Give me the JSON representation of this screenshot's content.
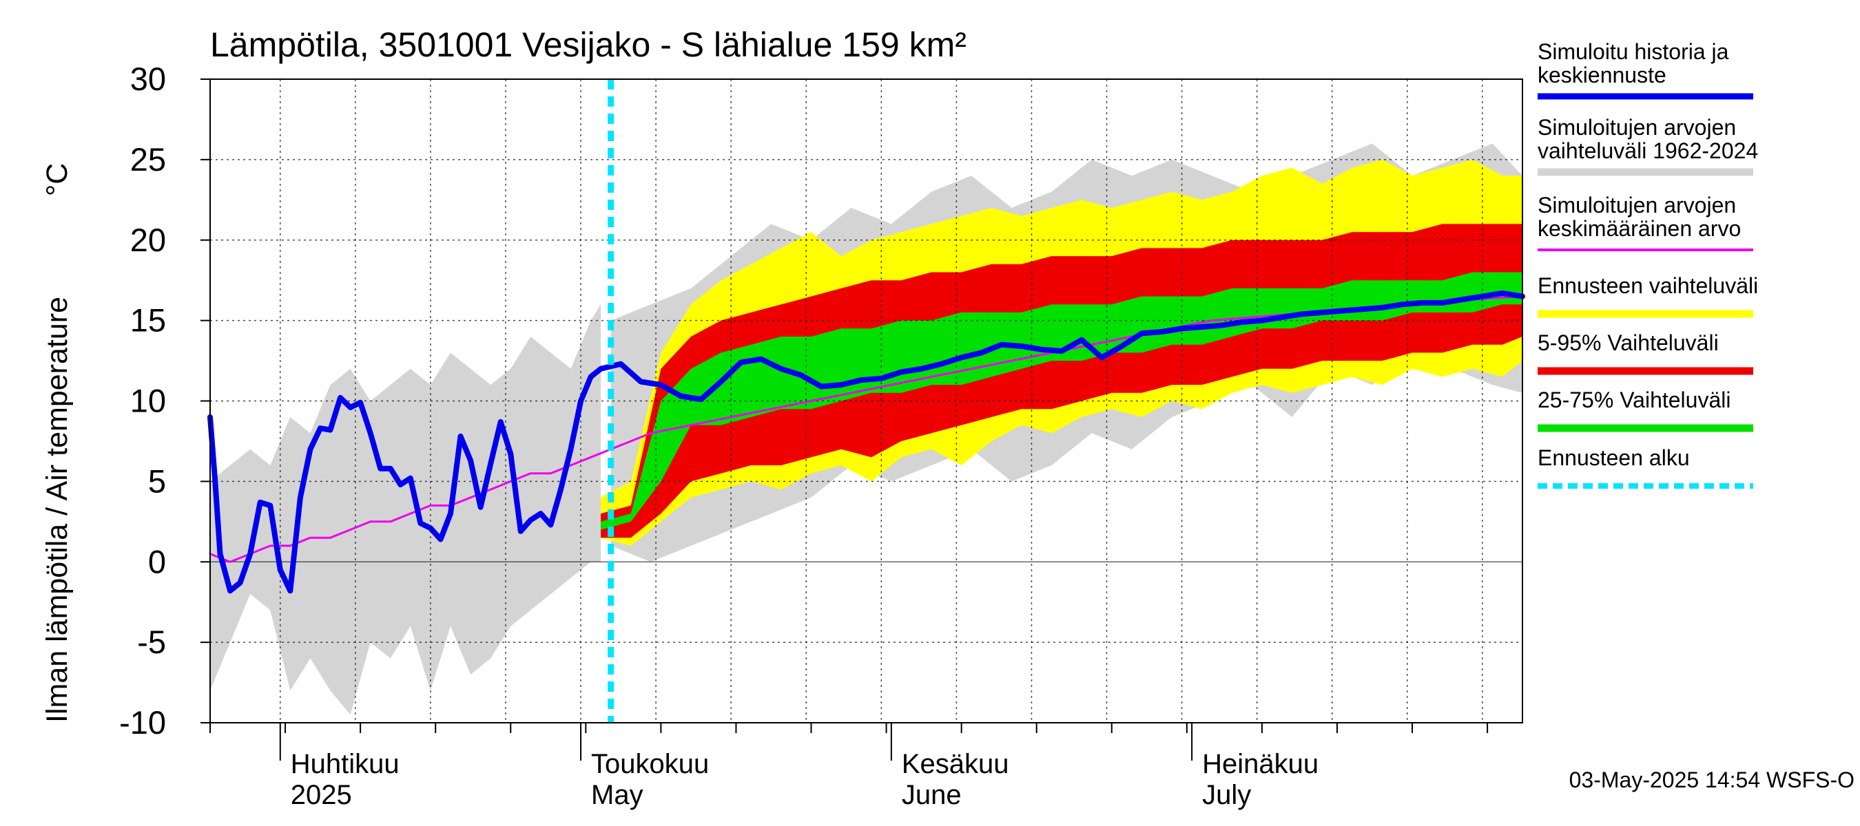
{
  "chart_data": {
    "type": "area",
    "title": "Lämpötila, 3501001 Vesijako - S lähialue 159 km²",
    "ylabel_fi": "Ilman lämpötila / Air temperature",
    "yunit": "°C",
    "ylim": [
      -10,
      30
    ],
    "yticks": [
      "30",
      "25",
      "20",
      "15",
      "10",
      "5",
      "0",
      "-5",
      "-10"
    ],
    "x_start": "2025-03-25",
    "x_end": "2025-08-03",
    "forecast_start": "2025-05-04",
    "month_labels": [
      {
        "fi": "Huhtikuu",
        "en": "2025",
        "date": "2025-04-01"
      },
      {
        "fi": "Toukokuu",
        "en": "May",
        "date": "2025-05-01"
      },
      {
        "fi": "Kesäkuu",
        "en": "June",
        "date": "2025-06-01"
      },
      {
        "fi": "Heinäkuu",
        "en": "July",
        "date": "2025-07-01"
      }
    ],
    "timestamp": "03-May-2025 14:54 WSFS-O",
    "colors": {
      "history": "#0000ee",
      "range": "#d4d4d4",
      "mean": "#ee00ee",
      "forecast_range": "#ffff00",
      "p5_95": "#ee0000",
      "p25_75": "#00e000",
      "forecast_start": "#00e5ff"
    },
    "series": {
      "hist_range": {
        "x": [
          0,
          2,
          4,
          6,
          8,
          10,
          12,
          14,
          16,
          18,
          20,
          22,
          24,
          26,
          28,
          30,
          32,
          34,
          36,
          38,
          39
        ],
        "low": [
          -8,
          -5,
          -2,
          -3,
          -8,
          -6,
          -8,
          -9.5,
          -5,
          -6,
          -4,
          -8,
          -4,
          -7,
          -6,
          -4,
          -3,
          -2,
          -1,
          0,
          0
        ],
        "high": [
          5,
          6,
          7,
          6,
          9,
          8,
          11,
          12,
          10,
          11,
          12,
          11,
          13,
          12,
          11,
          12,
          14,
          13,
          12,
          15,
          16
        ]
      },
      "clim_range": {
        "x": [
          40,
          44,
          48,
          52,
          56,
          60,
          64,
          68,
          72,
          76,
          80,
          84,
          88,
          92,
          96,
          100,
          104,
          108,
          112,
          116,
          120,
          124,
          128,
          131
        ],
        "low": [
          1,
          0,
          1,
          2,
          3,
          4,
          6,
          5,
          6,
          7,
          5,
          6,
          8,
          7,
          9,
          10,
          11,
          9,
          12,
          11,
          13,
          12,
          11,
          10.5
        ],
        "high": [
          15,
          16,
          17,
          19,
          21,
          20,
          22,
          21,
          23,
          24,
          22,
          23,
          25,
          24,
          25,
          24,
          23,
          24,
          25,
          26,
          24,
          25,
          26,
          24
        ]
      },
      "fc_outer": {
        "x": [
          39,
          42,
          45,
          48,
          51,
          54,
          57,
          60,
          63,
          66,
          69,
          72,
          75,
          78,
          81,
          84,
          87,
          90,
          93,
          96,
          99,
          102,
          105,
          108,
          111,
          114,
          117,
          120,
          123,
          126,
          129,
          131
        ],
        "low": [
          1.5,
          1.0,
          2.5,
          4.0,
          4.5,
          5.0,
          4.5,
          5.5,
          6.0,
          5.0,
          6.5,
          7.0,
          6.0,
          7.5,
          8.5,
          8.0,
          9.0,
          9.5,
          9.0,
          10.0,
          9.5,
          10.5,
          11.0,
          10.5,
          11.0,
          11.5,
          11.0,
          12.0,
          11.5,
          12.0,
          11.5,
          12.5
        ],
        "high": [
          4.0,
          5.0,
          13.0,
          16.0,
          17.5,
          18.5,
          19.5,
          20.5,
          19.0,
          20.0,
          20.5,
          21.0,
          21.5,
          22.0,
          21.5,
          22.0,
          22.5,
          22.0,
          22.5,
          23.0,
          22.5,
          23.0,
          24.0,
          24.5,
          23.5,
          24.5,
          25.0,
          24.0,
          24.5,
          25.0,
          24.0,
          24.0
        ]
      },
      "fc_5_95": {
        "x": [
          39,
          42,
          45,
          48,
          51,
          54,
          57,
          60,
          63,
          66,
          69,
          72,
          75,
          78,
          81,
          84,
          87,
          90,
          93,
          96,
          99,
          102,
          105,
          108,
          111,
          114,
          117,
          120,
          123,
          126,
          129,
          131
        ],
        "low": [
          1.5,
          1.5,
          3.0,
          5.0,
          5.5,
          6.0,
          6.0,
          6.5,
          7.0,
          6.5,
          7.5,
          8.0,
          8.5,
          9.0,
          9.5,
          9.5,
          10.0,
          10.5,
          10.5,
          11.0,
          11.0,
          11.5,
          12.0,
          12.0,
          12.5,
          12.5,
          12.5,
          13.0,
          13.0,
          13.5,
          13.5,
          14.0
        ],
        "high": [
          3.0,
          3.5,
          12.0,
          14.0,
          15.0,
          15.5,
          16.0,
          16.5,
          17.0,
          17.5,
          17.5,
          18.0,
          18.0,
          18.5,
          18.5,
          19.0,
          19.0,
          19.0,
          19.5,
          19.5,
          19.5,
          20.0,
          20.0,
          20.0,
          20.0,
          20.5,
          20.5,
          20.5,
          21.0,
          21.0,
          21.0,
          21.0
        ]
      },
      "fc_25_75": {
        "x": [
          39,
          42,
          45,
          48,
          51,
          54,
          57,
          60,
          63,
          66,
          69,
          72,
          75,
          78,
          81,
          84,
          87,
          90,
          93,
          96,
          99,
          102,
          105,
          108,
          111,
          114,
          117,
          120,
          123,
          126,
          129,
          131
        ],
        "low": [
          2.0,
          2.5,
          5.0,
          8.5,
          8.5,
          9.0,
          9.5,
          9.5,
          10.0,
          10.5,
          10.5,
          11.0,
          11.0,
          11.5,
          12.0,
          12.5,
          12.5,
          13.0,
          13.0,
          13.5,
          13.5,
          14.0,
          14.5,
          14.5,
          15.0,
          15.0,
          15.0,
          15.5,
          15.5,
          15.5,
          16.0,
          16.0
        ],
        "high": [
          2.5,
          3.0,
          10.0,
          12.0,
          13.0,
          13.5,
          14.0,
          14.0,
          14.5,
          14.5,
          15.0,
          15.0,
          15.5,
          15.5,
          15.5,
          16.0,
          16.0,
          16.0,
          16.5,
          16.5,
          16.5,
          17.0,
          17.0,
          17.0,
          17.0,
          17.5,
          17.5,
          17.5,
          17.5,
          18.0,
          18.0,
          18.0
        ]
      },
      "history": {
        "x": [
          0,
          0.5,
          1,
          2,
          3,
          4,
          5,
          6,
          7,
          8,
          9,
          10,
          11,
          12,
          13,
          14,
          15,
          16,
          17,
          18,
          19,
          20,
          21,
          22,
          23,
          24,
          25,
          26,
          27,
          28,
          29,
          30,
          31,
          32,
          33,
          34,
          35,
          36,
          37,
          38,
          39
        ],
        "y": [
          9,
          5,
          0.5,
          -1.8,
          -1.3,
          0.5,
          3.7,
          3.5,
          -0.5,
          -1.8,
          4,
          7,
          8.3,
          8.2,
          10.2,
          9.6,
          9.9,
          8,
          5.8,
          5.8,
          4.8,
          5.2,
          2.4,
          2.1,
          1.4,
          3,
          7.8,
          6.3,
          3.4,
          6.1,
          8.7,
          6.7,
          1.9,
          2.6,
          3,
          2.3,
          4.5,
          7,
          10,
          11.5,
          12
        ]
      },
      "forecast_median": {
        "x": [
          39,
          41,
          43,
          45,
          47,
          49,
          51,
          53,
          55,
          57,
          59,
          61,
          63,
          65,
          67,
          69,
          71,
          73,
          75,
          77,
          79,
          81,
          83,
          85,
          87,
          89,
          91,
          93,
          95,
          97,
          99,
          101,
          103,
          105,
          107,
          109,
          111,
          113,
          115,
          117,
          119,
          121,
          123,
          125,
          127,
          129,
          131
        ],
        "y": [
          12,
          12.3,
          11.2,
          11,
          10.3,
          10.1,
          11.2,
          12.4,
          12.6,
          12,
          11.6,
          10.9,
          11,
          11.3,
          11.4,
          11.8,
          12,
          12.3,
          12.7,
          13,
          13.5,
          13.4,
          13.2,
          13.1,
          13.8,
          12.7,
          13.4,
          14.2,
          14.3,
          14.5,
          14.6,
          14.7,
          14.9,
          15,
          15.2,
          15.4,
          15.5,
          15.6,
          15.7,
          15.8,
          16,
          16.1,
          16.1,
          16.3,
          16.5,
          16.7,
          16.5
        ]
      },
      "mean": {
        "x": [
          0,
          2,
          4,
          6,
          8,
          10,
          12,
          14,
          16,
          18,
          20,
          22,
          24,
          26,
          28,
          30,
          32,
          34,
          36,
          38,
          40,
          44,
          48,
          52,
          56,
          60,
          64,
          68,
          72,
          76,
          80,
          84,
          88,
          92,
          96,
          100,
          104,
          108,
          112,
          116,
          120,
          124,
          128,
          131
        ],
        "y": [
          0.5,
          0,
          0.5,
          1,
          1,
          1.5,
          1.5,
          2,
          2.5,
          2.5,
          3,
          3.5,
          3.5,
          4,
          4.5,
          5,
          5.5,
          5.5,
          6,
          6.5,
          7,
          8,
          8.5,
          9,
          9.5,
          10,
          10.5,
          11,
          11.5,
          12,
          12.5,
          13,
          13.5,
          14,
          14.5,
          15,
          15.2,
          15.4,
          15.6,
          15.8,
          16,
          16.2,
          16.4,
          16.5
        ]
      }
    }
  },
  "legend": {
    "items": [
      {
        "line1": "Simuloitu historia ja",
        "line2": "keskiennuste"
      },
      {
        "line1": "Simuloitujen arvojen",
        "line2": "vaihteluväli 1962-2024"
      },
      {
        "line1": "Simuloitujen arvojen",
        "line2": "keskimääräinen arvo"
      },
      {
        "line1": "Ennusteen vaihteluväli",
        "line2": ""
      },
      {
        "line1": "5-95% Vaihteluväli",
        "line2": ""
      },
      {
        "line1": "25-75% Vaihteluväli",
        "line2": ""
      },
      {
        "line1": "Ennusteen alku",
        "line2": ""
      }
    ]
  }
}
